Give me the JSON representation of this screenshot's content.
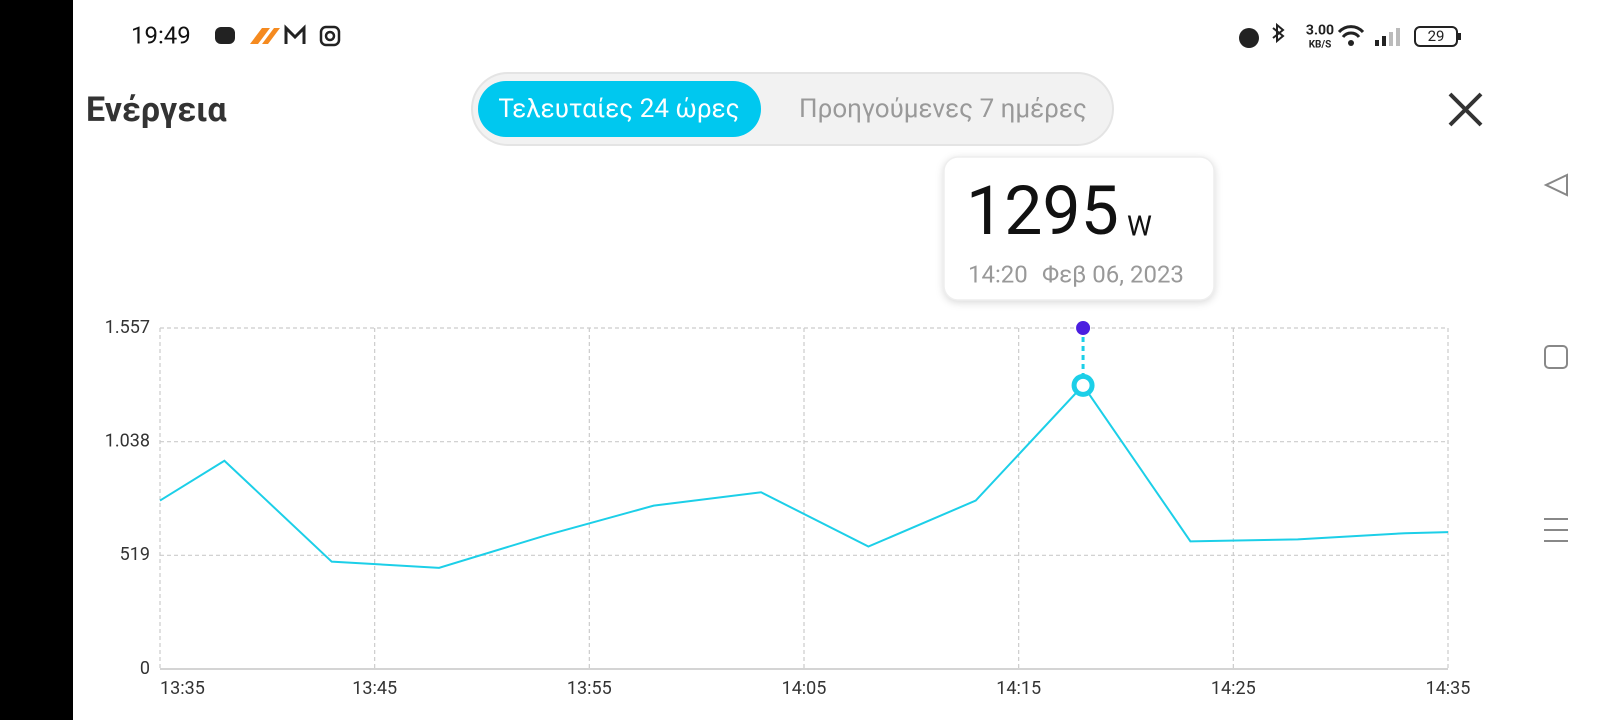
{
  "status_bar": {
    "time": "19:49",
    "speed": "3.00",
    "speed_unit": "KB/S",
    "battery": "29"
  },
  "header": {
    "title": "Ενέργεια",
    "tabs": [
      "Τελευταίες 24 ώρες",
      "Προηγούμενες 7 ημέρες"
    ]
  },
  "tooltip": {
    "value": "1295",
    "unit": "W",
    "time": "14:20",
    "date": "Φεβ 06, 2023"
  },
  "chart_data": {
    "type": "line",
    "x": [
      "13:35",
      "13:38",
      "13:43",
      "13:48",
      "13:53",
      "13:58",
      "14:03",
      "14:08",
      "14:13",
      "14:18",
      "14:23",
      "14:28",
      "14:33",
      "14:35"
    ],
    "series": [
      {
        "color": "#1ccfe8",
        "values": [
          769,
          951,
          490,
          462,
          611,
          746,
          807,
          559,
          769,
          1295,
          583,
          592,
          620,
          625
        ]
      }
    ],
    "xlim": [
      "13:35",
      "14:35"
    ],
    "xticks": [
      "13:35",
      "13:45",
      "13:55",
      "14:05",
      "14:15",
      "14:25",
      "14:35"
    ],
    "ylim": [
      0,
      1557
    ],
    "yticks": [
      0,
      519,
      {
        "value": 1038,
        "label": "1.038"
      },
      {
        "value": 1557,
        "label": "1.557"
      }
    ],
    "grid": true
  }
}
